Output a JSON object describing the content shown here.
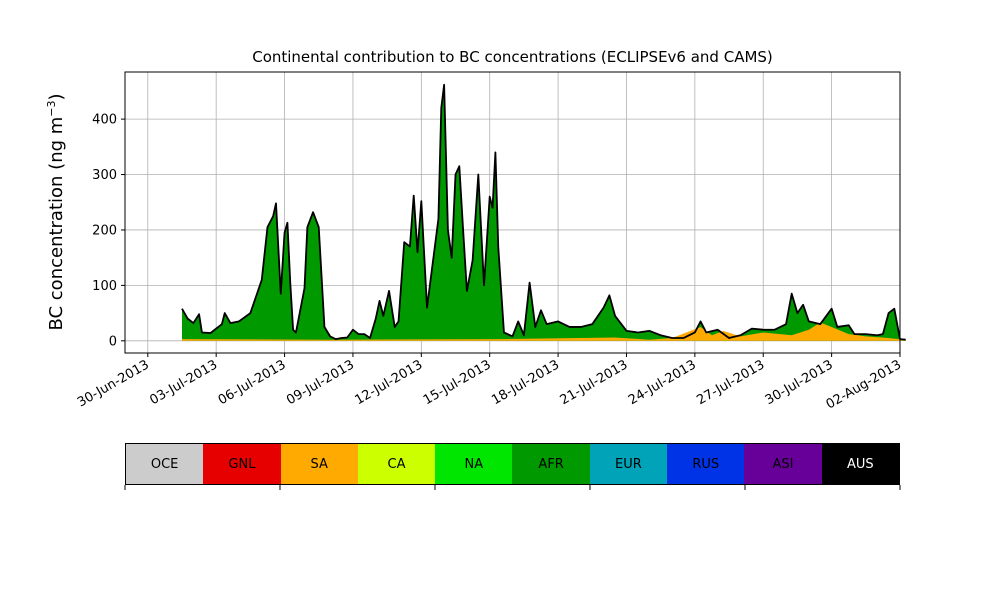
{
  "chart_data": {
    "type": "area",
    "title": "Continental contribution to BC concentrations (ECLIPSEv6 and CAMS)",
    "ylabel_text": "BC concentration (ng m",
    "ylabel_exp": "−3",
    "ylabel_close": ")",
    "ylim": [
      -22,
      485
    ],
    "yticks": [
      0,
      100,
      200,
      300,
      400
    ],
    "xlim": [
      "2013-06-29",
      "2013-08-02"
    ],
    "xticks": [
      {
        "date": "2013-06-30",
        "label": "30-Jun-2013"
      },
      {
        "date": "2013-07-03",
        "label": "03-Jul-2013"
      },
      {
        "date": "2013-07-06",
        "label": "06-Jul-2013"
      },
      {
        "date": "2013-07-09",
        "label": "09-Jul-2013"
      },
      {
        "date": "2013-07-12",
        "label": "12-Jul-2013"
      },
      {
        "date": "2013-07-15",
        "label": "15-Jul-2013"
      },
      {
        "date": "2013-07-18",
        "label": "18-Jul-2013"
      },
      {
        "date": "2013-07-21",
        "label": "21-Jul-2013"
      },
      {
        "date": "2013-07-24",
        "label": "24-Jul-2013"
      },
      {
        "date": "2013-07-27",
        "label": "27-Jul-2013"
      },
      {
        "date": "2013-07-30",
        "label": "30-Jul-2013"
      },
      {
        "date": "2013-08-02",
        "label": "02-Aug-2013"
      }
    ],
    "grid": true,
    "total_color": "#000000",
    "total": [
      [
        "2013-07-01 12:00",
        58
      ],
      [
        "2013-07-01 18:00",
        40
      ],
      [
        "2013-07-02 00:00",
        32
      ],
      [
        "2013-07-02 06:00",
        48
      ],
      [
        "2013-07-02 09:00",
        15
      ],
      [
        "2013-07-02 18:00",
        14
      ],
      [
        "2013-07-03 00:00",
        22
      ],
      [
        "2013-07-03 06:00",
        30
      ],
      [
        "2013-07-03 09:00",
        50
      ],
      [
        "2013-07-03 15:00",
        32
      ],
      [
        "2013-07-04 00:00",
        35
      ],
      [
        "2013-07-04 12:00",
        50
      ],
      [
        "2013-07-05 00:00",
        110
      ],
      [
        "2013-07-05 06:00",
        205
      ],
      [
        "2013-07-05 12:00",
        225
      ],
      [
        "2013-07-05 15:00",
        248
      ],
      [
        "2013-07-05 18:00",
        150
      ],
      [
        "2013-07-05 20:00",
        85
      ],
      [
        "2013-07-06 00:00",
        195
      ],
      [
        "2013-07-06 03:00",
        213
      ],
      [
        "2013-07-06 06:00",
        105
      ],
      [
        "2013-07-06 09:00",
        20
      ],
      [
        "2013-07-06 12:00",
        15
      ],
      [
        "2013-07-06 21:00",
        95
      ],
      [
        "2013-07-07 00:00",
        205
      ],
      [
        "2013-07-07 06:00",
        232
      ],
      [
        "2013-07-07 12:00",
        205
      ],
      [
        "2013-07-07 18:00",
        25
      ],
      [
        "2013-07-08 00:00",
        8
      ],
      [
        "2013-07-08 06:00",
        3
      ],
      [
        "2013-07-08 12:00",
        5
      ],
      [
        "2013-07-08 18:00",
        6
      ],
      [
        "2013-07-09 00:00",
        20
      ],
      [
        "2013-07-09 06:00",
        12
      ],
      [
        "2013-07-09 12:00",
        12
      ],
      [
        "2013-07-09 18:00",
        5
      ],
      [
        "2013-07-10 00:00",
        40
      ],
      [
        "2013-07-10 04:00",
        72
      ],
      [
        "2013-07-10 08:00",
        45
      ],
      [
        "2013-07-10 14:00",
        90
      ],
      [
        "2013-07-10 20:00",
        25
      ],
      [
        "2013-07-11 00:00",
        35
      ],
      [
        "2013-07-11 06:00",
        178
      ],
      [
        "2013-07-11 12:00",
        170
      ],
      [
        "2013-07-11 16:00",
        262
      ],
      [
        "2013-07-11 20:00",
        160
      ],
      [
        "2013-07-12 00:00",
        252
      ],
      [
        "2013-07-12 06:00",
        60
      ],
      [
        "2013-07-12 12:00",
        140
      ],
      [
        "2013-07-12 18:00",
        220
      ],
      [
        "2013-07-12 21:00",
        420
      ],
      [
        "2013-07-13 00:00",
        462
      ],
      [
        "2013-07-13 04:00",
        200
      ],
      [
        "2013-07-13 08:00",
        150
      ],
      [
        "2013-07-13 12:00",
        300
      ],
      [
        "2013-07-13 16:00",
        315
      ],
      [
        "2013-07-13 20:00",
        200
      ],
      [
        "2013-07-14 00:00",
        90
      ],
      [
        "2013-07-14 06:00",
        145
      ],
      [
        "2013-07-14 12:00",
        300
      ],
      [
        "2013-07-14 18:00",
        100
      ],
      [
        "2013-07-15 00:00",
        260
      ],
      [
        "2013-07-15 03:00",
        240
      ],
      [
        "2013-07-15 06:00",
        340
      ],
      [
        "2013-07-15 09:00",
        170
      ],
      [
        "2013-07-15 15:00",
        15
      ],
      [
        "2013-07-16 00:00",
        8
      ],
      [
        "2013-07-16 06:00",
        35
      ],
      [
        "2013-07-16 12:00",
        10
      ],
      [
        "2013-07-16 18:00",
        105
      ],
      [
        "2013-07-17 00:00",
        25
      ],
      [
        "2013-07-17 06:00",
        55
      ],
      [
        "2013-07-17 12:00",
        30
      ],
      [
        "2013-07-18 00:00",
        35
      ],
      [
        "2013-07-18 12:00",
        25
      ],
      [
        "2013-07-19 00:00",
        25
      ],
      [
        "2013-07-19 12:00",
        30
      ],
      [
        "2013-07-20 00:00",
        60
      ],
      [
        "2013-07-20 06:00",
        82
      ],
      [
        "2013-07-20 12:00",
        45
      ],
      [
        "2013-07-21 00:00",
        18
      ],
      [
        "2013-07-21 12:00",
        15
      ],
      [
        "2013-07-22 00:00",
        18
      ],
      [
        "2013-07-22 12:00",
        10
      ],
      [
        "2013-07-23 00:00",
        5
      ],
      [
        "2013-07-23 12:00",
        5
      ],
      [
        "2013-07-24 00:00",
        15
      ],
      [
        "2013-07-24 06:00",
        35
      ],
      [
        "2013-07-24 12:00",
        15
      ],
      [
        "2013-07-25 00:00",
        20
      ],
      [
        "2013-07-25 12:00",
        5
      ],
      [
        "2013-07-26 00:00",
        10
      ],
      [
        "2013-07-26 12:00",
        22
      ],
      [
        "2013-07-27 00:00",
        20
      ],
      [
        "2013-07-27 12:00",
        20
      ],
      [
        "2013-07-28 00:00",
        30
      ],
      [
        "2013-07-28 06:00",
        85
      ],
      [
        "2013-07-28 12:00",
        50
      ],
      [
        "2013-07-28 18:00",
        65
      ],
      [
        "2013-07-29 00:00",
        35
      ],
      [
        "2013-07-29 12:00",
        30
      ],
      [
        "2013-07-30 00:00",
        58
      ],
      [
        "2013-07-30 06:00",
        25
      ],
      [
        "2013-07-30 18:00",
        28
      ],
      [
        "2013-07-31 00:00",
        12
      ],
      [
        "2013-07-31 12:00",
        12
      ],
      [
        "2013-08-01 00:00",
        10
      ],
      [
        "2013-08-01 06:00",
        12
      ],
      [
        "2013-08-01 12:00",
        50
      ],
      [
        "2013-08-01 18:00",
        58
      ],
      [
        "2013-08-02 00:00",
        3
      ],
      [
        "2013-08-02 06:00",
        2
      ]
    ],
    "sa_band": [
      [
        "2013-07-01 12:00",
        3
      ],
      [
        "2013-07-08 00:00",
        2
      ],
      [
        "2013-07-15 12:00",
        3
      ],
      [
        "2013-07-20 12:00",
        6
      ],
      [
        "2013-07-22 00:00",
        2
      ],
      [
        "2013-07-23 00:00",
        5
      ],
      [
        "2013-07-24 06:00",
        25
      ],
      [
        "2013-07-24 18:00",
        10
      ],
      [
        "2013-07-25 06:00",
        18
      ],
      [
        "2013-07-26 00:00",
        8
      ],
      [
        "2013-07-27 00:00",
        15
      ],
      [
        "2013-07-28 06:00",
        10
      ],
      [
        "2013-07-29 00:00",
        20
      ],
      [
        "2013-07-29 12:00",
        33
      ],
      [
        "2013-07-30 00:00",
        25
      ],
      [
        "2013-07-30 18:00",
        12
      ],
      [
        "2013-07-31 12:00",
        8
      ],
      [
        "2013-08-01 12:00",
        5
      ],
      [
        "2013-08-02 06:00",
        2
      ]
    ],
    "legend": [
      {
        "label": "OCE",
        "color": "#cccccc"
      },
      {
        "label": "GNL",
        "color": "#e60000"
      },
      {
        "label": "SA",
        "color": "#ffaa00"
      },
      {
        "label": "CA",
        "color": "#ccff00"
      },
      {
        "label": "NA",
        "color": "#00e600"
      },
      {
        "label": "AFR",
        "color": "#009900"
      },
      {
        "label": "EUR",
        "color": "#00a3b8"
      },
      {
        "label": "RUS",
        "color": "#0033e6"
      },
      {
        "label": "ASI",
        "color": "#660099"
      },
      {
        "label": "AUS",
        "color": "#000000"
      }
    ]
  }
}
